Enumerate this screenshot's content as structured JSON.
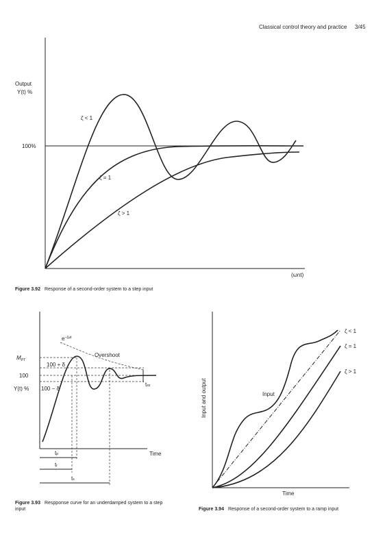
{
  "header": {
    "running_title": "Classical control theory and practice",
    "page": "3/45"
  },
  "figure_3_92": {
    "y_label": "Output",
    "y_label_2": "Y(t) %",
    "reference": "100%",
    "curves": [
      "ζ < 1",
      "ζ = 1",
      "ζ > 1"
    ],
    "x_label": "(ωnt)",
    "caption": {
      "number": "Figure 3.92",
      "text": "Response of a second-order system to a step input"
    }
  },
  "figure_3_93": {
    "mpt": {
      "text": "M",
      "sub": "PT"
    },
    "upper_band": "100 + δ",
    "level": "100",
    "y_label": "Y(t) %",
    "lower_band": "100 − δ",
    "envelope": {
      "text": "e",
      "sup": "−ζωt"
    },
    "overshoot": "Overshoot",
    "settling_band": {
      "text": "t",
      "sub": "ss"
    },
    "tp": {
      "text": "t",
      "sub": "p"
    },
    "tr": {
      "text": "t",
      "sub": "r"
    },
    "ts": {
      "text": "t",
      "sub": "s"
    },
    "x_label": "Time",
    "caption": {
      "number": "Figure 3.93",
      "text": "Respponse curve for an underdamped system to a step",
      "text_2": "input"
    }
  },
  "figure_3_94": {
    "curves": [
      "ζ < 1",
      "ζ = 1",
      "ζ > 1"
    ],
    "input": "Input",
    "y_label": "Input and output",
    "x_label": "Time",
    "caption": {
      "number": "Figure 3.94",
      "text": "Response of a second-order system to a ramp input"
    }
  }
}
